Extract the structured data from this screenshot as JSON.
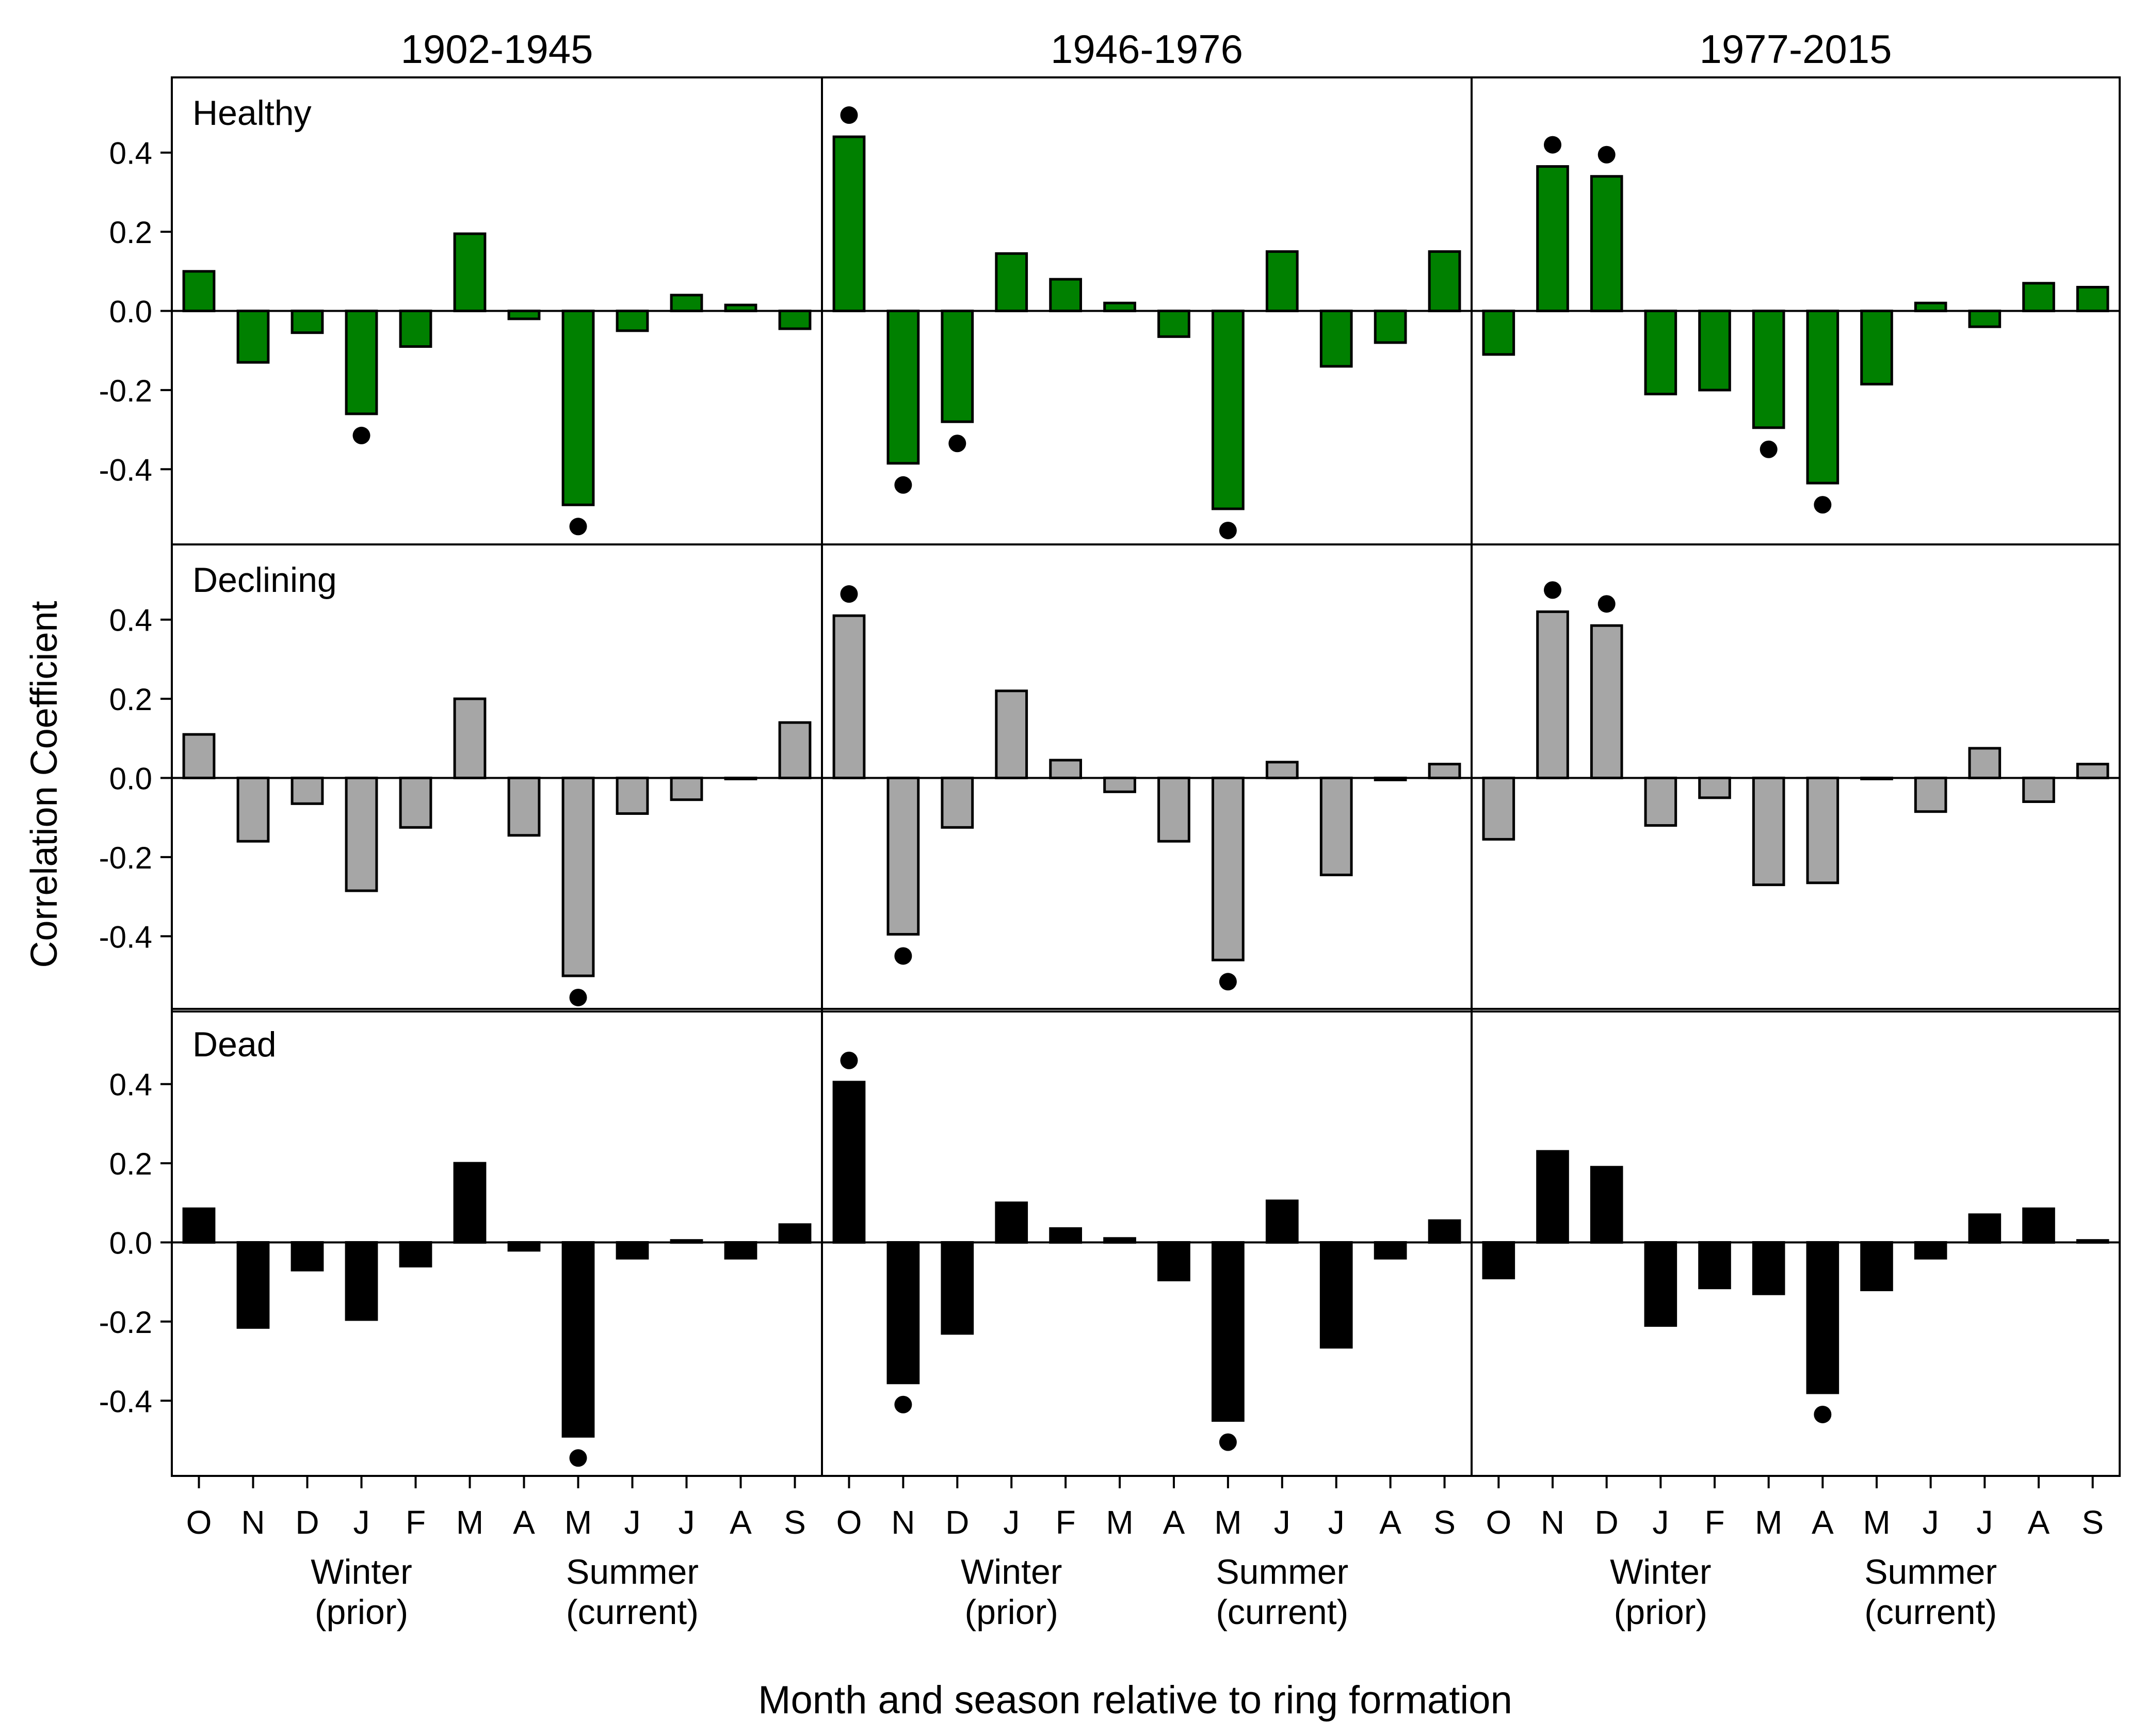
{
  "chart_data": {
    "type": "bar",
    "periods": [
      "1902-1945",
      "1946-1976",
      "1977-2015"
    ],
    "conditions": [
      "Healthy",
      "Declining",
      "Dead"
    ],
    "categories": [
      "O",
      "N",
      "D",
      "J",
      "F",
      "M",
      "A",
      "M",
      "J",
      "J",
      "A",
      "S"
    ],
    "season_labels": [
      {
        "line1": "Winter",
        "line2": "(prior)"
      },
      {
        "line1": "Summer",
        "line2": "(current)"
      }
    ],
    "ylabel": "Correlation Coefficient",
    "xlabel": "Month and season relative to ring formation",
    "ylim": [
      -0.59,
      0.59
    ],
    "yticks": [
      0.4,
      0.2,
      0.0,
      -0.2,
      -0.4
    ],
    "ytick_labels": [
      "0.4",
      "0.2",
      "0.0",
      "-0.2",
      "-0.4"
    ],
    "colors": {
      "Healthy": "#008000",
      "Declining": "#a6a6a6",
      "Dead": "#000000"
    },
    "panels": [
      {
        "row": "Healthy",
        "period": "1902-1945",
        "values": [
          0.1,
          -0.13,
          -0.055,
          -0.26,
          -0.09,
          0.195,
          -0.02,
          -0.49,
          -0.05,
          0.04,
          0.015,
          -0.045
        ],
        "significant": [
          false,
          false,
          false,
          true,
          false,
          false,
          false,
          true,
          false,
          false,
          false,
          false
        ]
      },
      {
        "row": "Healthy",
        "period": "1946-1976",
        "values": [
          0.44,
          -0.385,
          -0.28,
          0.145,
          0.08,
          0.02,
          -0.065,
          -0.5,
          0.15,
          -0.14,
          -0.08,
          0.15
        ],
        "significant": [
          true,
          true,
          true,
          false,
          false,
          false,
          false,
          true,
          false,
          false,
          false,
          false
        ]
      },
      {
        "row": "Healthy",
        "period": "1977-2015",
        "values": [
          -0.11,
          0.365,
          0.34,
          -0.21,
          -0.2,
          -0.295,
          -0.435,
          -0.185,
          0.02,
          -0.04,
          0.07,
          0.06
        ],
        "significant": [
          false,
          true,
          true,
          false,
          false,
          true,
          true,
          false,
          false,
          false,
          false,
          false
        ]
      },
      {
        "row": "Declining",
        "period": "1902-1945",
        "values": [
          0.11,
          -0.16,
          -0.065,
          -0.285,
          -0.125,
          0.2,
          -0.145,
          -0.5,
          -0.09,
          -0.055,
          0.0,
          0.14
        ],
        "significant": [
          false,
          false,
          false,
          false,
          false,
          false,
          false,
          true,
          false,
          false,
          false,
          false
        ]
      },
      {
        "row": "Declining",
        "period": "1946-1976",
        "values": [
          0.41,
          -0.395,
          -0.125,
          0.22,
          0.045,
          -0.035,
          -0.16,
          -0.46,
          0.04,
          -0.245,
          -0.005,
          0.035
        ],
        "significant": [
          true,
          true,
          false,
          false,
          false,
          false,
          false,
          true,
          false,
          false,
          false,
          false
        ]
      },
      {
        "row": "Declining",
        "period": "1977-2015",
        "values": [
          -0.155,
          0.42,
          0.385,
          -0.12,
          -0.05,
          -0.27,
          -0.265,
          0.0,
          -0.085,
          0.075,
          -0.06,
          0.035
        ],
        "significant": [
          false,
          true,
          true,
          false,
          false,
          false,
          false,
          false,
          false,
          false,
          false,
          false
        ]
      },
      {
        "row": "Dead",
        "period": "1902-1945",
        "values": [
          0.085,
          -0.215,
          -0.07,
          -0.195,
          -0.06,
          0.2,
          -0.02,
          -0.49,
          -0.04,
          0.005,
          -0.04,
          0.045
        ],
        "significant": [
          false,
          false,
          false,
          false,
          false,
          false,
          false,
          true,
          false,
          false,
          false,
          false
        ]
      },
      {
        "row": "Dead",
        "period": "1946-1976",
        "values": [
          0.405,
          -0.355,
          -0.23,
          0.1,
          0.035,
          0.01,
          -0.095,
          -0.45,
          0.105,
          -0.265,
          -0.04,
          0.055
        ],
        "significant": [
          true,
          true,
          false,
          false,
          false,
          false,
          false,
          true,
          false,
          false,
          false,
          false
        ]
      },
      {
        "row": "Dead",
        "period": "1977-2015",
        "values": [
          -0.09,
          0.23,
          0.19,
          -0.21,
          -0.115,
          -0.13,
          -0.38,
          -0.12,
          -0.04,
          0.07,
          0.085,
          0.005
        ],
        "significant": [
          false,
          false,
          false,
          false,
          false,
          false,
          true,
          false,
          false,
          false,
          false,
          false
        ]
      }
    ]
  }
}
